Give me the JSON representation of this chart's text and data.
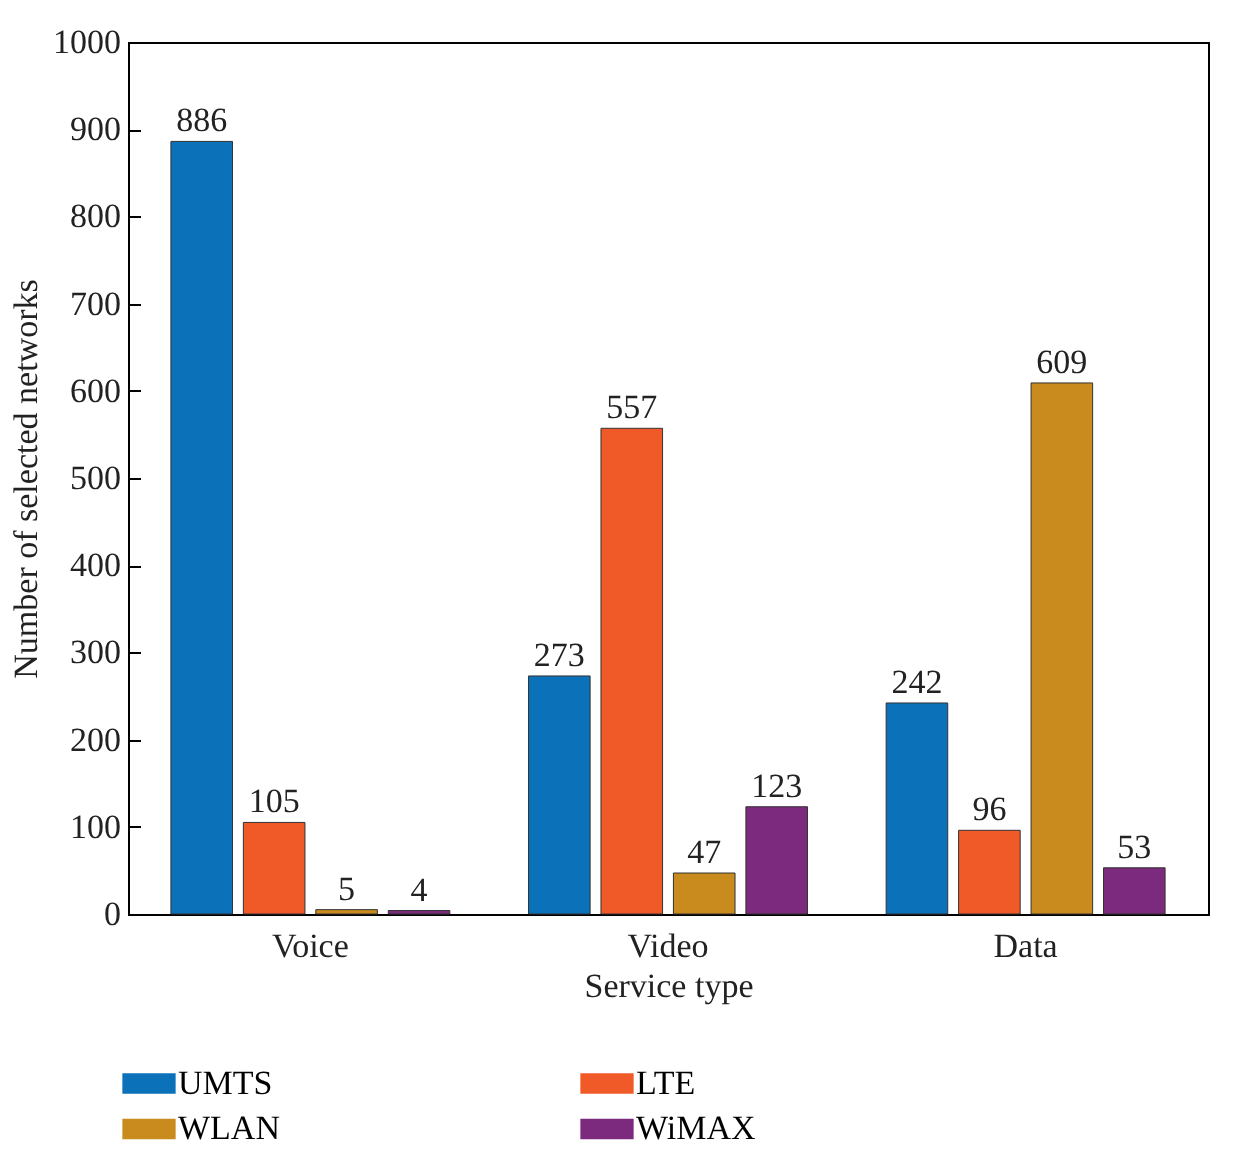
{
  "chart_data": {
    "type": "bar",
    "xlabel": "Service type",
    "ylabel": "Number of selected networks",
    "categories": [
      "Voice",
      "Video",
      "Data"
    ],
    "series": [
      {
        "name": "UMTS",
        "color": "#0b72ba",
        "values": [
          886,
          273,
          242
        ]
      },
      {
        "name": "LTE",
        "color": "#f05a28",
        "values": [
          105,
          557,
          96
        ]
      },
      {
        "name": "WLAN",
        "color": "#c98b1e",
        "values": [
          5,
          47,
          609
        ]
      },
      {
        "name": "WiMAX",
        "color": "#7b2a7e",
        "values": [
          4,
          123,
          53
        ]
      }
    ],
    "ylim": [
      0,
      1000
    ],
    "yticks": [
      0,
      100,
      200,
      300,
      400,
      500,
      600,
      700,
      800,
      900,
      1000
    ],
    "grid": false,
    "legend": "bottom",
    "data_labels": true
  }
}
